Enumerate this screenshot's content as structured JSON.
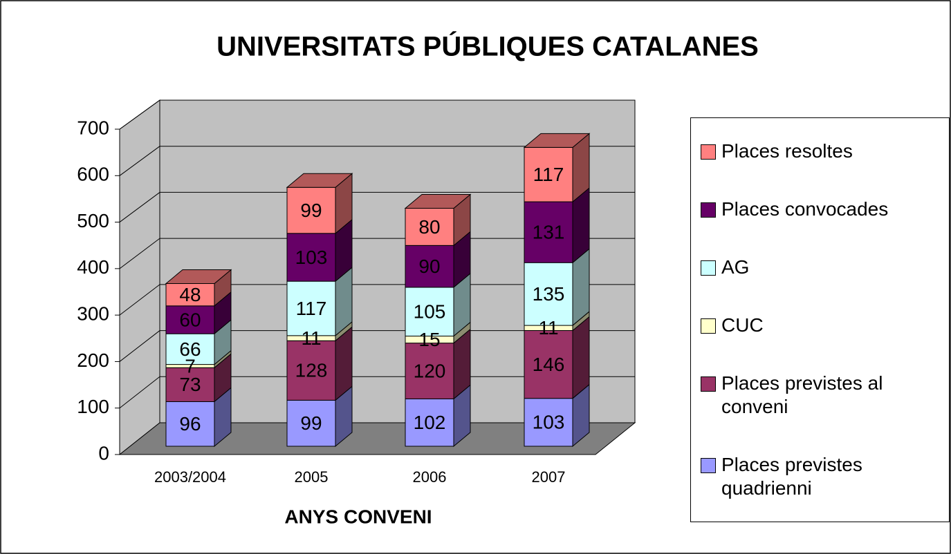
{
  "chart_data": {
    "type": "bar3d_stacked",
    "title": "UNIVERSITATS PÚBLIQUES CATALANES",
    "x_label": "ANYS CONVENI",
    "categories": [
      "2003/2004",
      "2005",
      "2006",
      "2007"
    ],
    "series": [
      {
        "name": "Places previstes quadrienni",
        "color": "#9999ff",
        "values": [
          96,
          99,
          102,
          103
        ]
      },
      {
        "name": "Places previstes al conveni",
        "color": "#993366",
        "values": [
          73,
          128,
          120,
          146
        ]
      },
      {
        "name": "CUC",
        "color": "#ffffcc",
        "values": [
          7,
          11,
          15,
          11
        ]
      },
      {
        "name": "AG",
        "color": "#ccffff",
        "values": [
          66,
          117,
          105,
          135
        ]
      },
      {
        "name": "Places convocades",
        "color": "#660066",
        "values": [
          60,
          103,
          90,
          131
        ]
      },
      {
        "name": "Places resoltes",
        "color": "#ff8080",
        "values": [
          48,
          99,
          80,
          117
        ]
      }
    ],
    "ylim": [
      0,
      700
    ],
    "yticks": [
      0,
      100,
      200,
      300,
      400,
      500,
      600,
      700
    ],
    "grid": true,
    "legend": "right"
  }
}
